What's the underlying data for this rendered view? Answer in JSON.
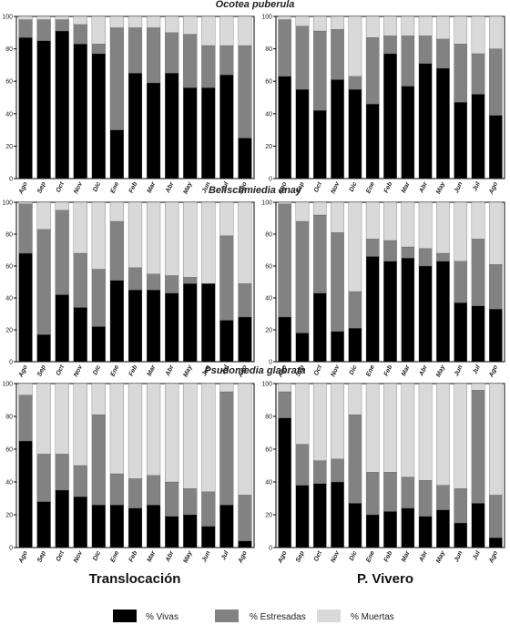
{
  "figure": {
    "species_titles": [
      "Ocotea puberula",
      "Beilschmiedia anay",
      "Psudomedia glabrata"
    ],
    "column_titles": [
      "Translocación",
      "P. Vivero"
    ],
    "legend": [
      {
        "label": "% Vivas",
        "color": "#000000"
      },
      {
        "label": "% Estresadas",
        "color": "#828282"
      },
      {
        "label": "% Muertas",
        "color": "#d9d9d9"
      }
    ]
  },
  "chart_data": [
    {
      "type": "bar",
      "stacked": true,
      "panel": "Ocotea puberula - Translocación",
      "categories": [
        "Ago",
        "Sep",
        "Oct",
        "Nov",
        "Dic",
        "Ene",
        "Feb",
        "Mar",
        "Abr",
        "May",
        "Jun",
        "Jul",
        "Ago"
      ],
      "series": [
        {
          "name": "% Vivas",
          "values": [
            87,
            85,
            91,
            83,
            77,
            30,
            65,
            59,
            65,
            56,
            56,
            64,
            25
          ]
        },
        {
          "name": "% Estresadas",
          "values": [
            11,
            13,
            7,
            12,
            6,
            63,
            28,
            34,
            25,
            33,
            26,
            18,
            57
          ]
        },
        {
          "name": "% Muertas",
          "values": [
            2,
            2,
            2,
            5,
            17,
            7,
            7,
            7,
            10,
            11,
            18,
            18,
            18
          ]
        }
      ],
      "ylim": [
        0,
        100
      ],
      "yticks": [
        0,
        20,
        40,
        60,
        80,
        100
      ]
    },
    {
      "type": "bar",
      "stacked": true,
      "panel": "Ocotea puberula - P. Vivero",
      "categories": [
        "Ago",
        "Sep",
        "Oct",
        "Nov",
        "Dic",
        "Ene",
        "Feb",
        "Mar",
        "Abr",
        "May",
        "Jun",
        "Jul",
        "Ago"
      ],
      "series": [
        {
          "name": "% Vivas",
          "values": [
            63,
            55,
            42,
            61,
            55,
            46,
            77,
            57,
            71,
            68,
            47,
            52,
            39
          ]
        },
        {
          "name": "% Estresadas",
          "values": [
            35,
            39,
            49,
            31,
            8,
            41,
            11,
            31,
            17,
            18,
            36,
            25,
            41
          ]
        },
        {
          "name": "% Muertas",
          "values": [
            2,
            6,
            9,
            8,
            37,
            13,
            12,
            12,
            12,
            14,
            17,
            23,
            20
          ]
        }
      ],
      "ylim": [
        0,
        100
      ],
      "yticks": [
        0,
        20,
        40,
        60,
        80,
        100
      ]
    },
    {
      "type": "bar",
      "stacked": true,
      "panel": "Beilschmiedia anay - Translocación",
      "categories": [
        "Ago",
        "Sep",
        "Oct",
        "Nov",
        "Dic",
        "Ene",
        "Feb",
        "Mar",
        "Abr",
        "May",
        "Jun",
        "Jul",
        "Ago"
      ],
      "series": [
        {
          "name": "% Vivas",
          "values": [
            68,
            17,
            42,
            34,
            22,
            51,
            45,
            45,
            43,
            49,
            49,
            26,
            28
          ]
        },
        {
          "name": "% Estresadas",
          "values": [
            31,
            66,
            53,
            34,
            36,
            37,
            14,
            10,
            11,
            4,
            0,
            53,
            21
          ]
        },
        {
          "name": "% Muertas",
          "values": [
            1,
            17,
            5,
            32,
            42,
            12,
            41,
            45,
            46,
            47,
            51,
            21,
            51
          ]
        }
      ],
      "ylim": [
        0,
        100
      ],
      "yticks": [
        0,
        20,
        40,
        60,
        80,
        100
      ]
    },
    {
      "type": "bar",
      "stacked": true,
      "panel": "Beilschmiedia anay - P. Vivero",
      "categories": [
        "Ago",
        "Sep",
        "Oct",
        "Nov",
        "Dic",
        "Ene",
        "Feb",
        "Mar",
        "Abr",
        "May",
        "Jun",
        "Jul",
        "Ago"
      ],
      "series": [
        {
          "name": "% Vivas",
          "values": [
            28,
            18,
            43,
            19,
            21,
            66,
            63,
            65,
            60,
            63,
            37,
            35,
            33
          ]
        },
        {
          "name": "% Estresadas",
          "values": [
            71,
            70,
            49,
            62,
            23,
            11,
            13,
            7,
            11,
            5,
            26,
            42,
            28
          ]
        },
        {
          "name": "% Muertas",
          "values": [
            1,
            12,
            8,
            19,
            56,
            23,
            24,
            28,
            29,
            32,
            37,
            23,
            39
          ]
        }
      ],
      "ylim": [
        0,
        100
      ],
      "yticks": [
        0,
        20,
        40,
        60,
        80,
        100
      ]
    },
    {
      "type": "bar",
      "stacked": true,
      "panel": "Psudomedia glabrata - Translocación",
      "categories": [
        "Ago",
        "Sep",
        "Oct",
        "Nov",
        "Dic",
        "Ene",
        "Feb",
        "Mar",
        "Abr",
        "May",
        "Jun",
        "Jul",
        "Ago"
      ],
      "series": [
        {
          "name": "% Vivas",
          "values": [
            65,
            28,
            35,
            31,
            26,
            26,
            24,
            26,
            19,
            20,
            13,
            26,
            4
          ]
        },
        {
          "name": "% Estresadas",
          "values": [
            28,
            29,
            22,
            19,
            55,
            19,
            18,
            18,
            21,
            16,
            21,
            69,
            28
          ]
        },
        {
          "name": "% Muertas",
          "values": [
            7,
            43,
            43,
            50,
            19,
            55,
            58,
            56,
            60,
            64,
            66,
            5,
            68
          ]
        }
      ],
      "ylim": [
        0,
        100
      ],
      "yticks": [
        0,
        20,
        40,
        60,
        80,
        100
      ]
    },
    {
      "type": "bar",
      "stacked": true,
      "panel": "Psudomedia glabrata - P. Vivero",
      "categories": [
        "Ago",
        "Sep",
        "Oct",
        "Nov",
        "Dic",
        "Ene",
        "Feb",
        "Mar",
        "Abr",
        "May",
        "Jun",
        "Jul",
        "Ago"
      ],
      "series": [
        {
          "name": "% Vivas",
          "values": [
            79,
            38,
            39,
            40,
            27,
            20,
            22,
            24,
            19,
            23,
            15,
            27,
            6
          ]
        },
        {
          "name": "% Estresadas",
          "values": [
            16,
            25,
            14,
            14,
            54,
            26,
            24,
            19,
            22,
            15,
            21,
            69,
            26
          ]
        },
        {
          "name": "% Muertas",
          "values": [
            5,
            37,
            47,
            46,
            19,
            54,
            54,
            57,
            59,
            62,
            64,
            4,
            68
          ]
        }
      ],
      "ylim": [
        0,
        100
      ],
      "yticks": [
        0,
        20,
        40,
        60,
        80,
        100
      ]
    }
  ]
}
